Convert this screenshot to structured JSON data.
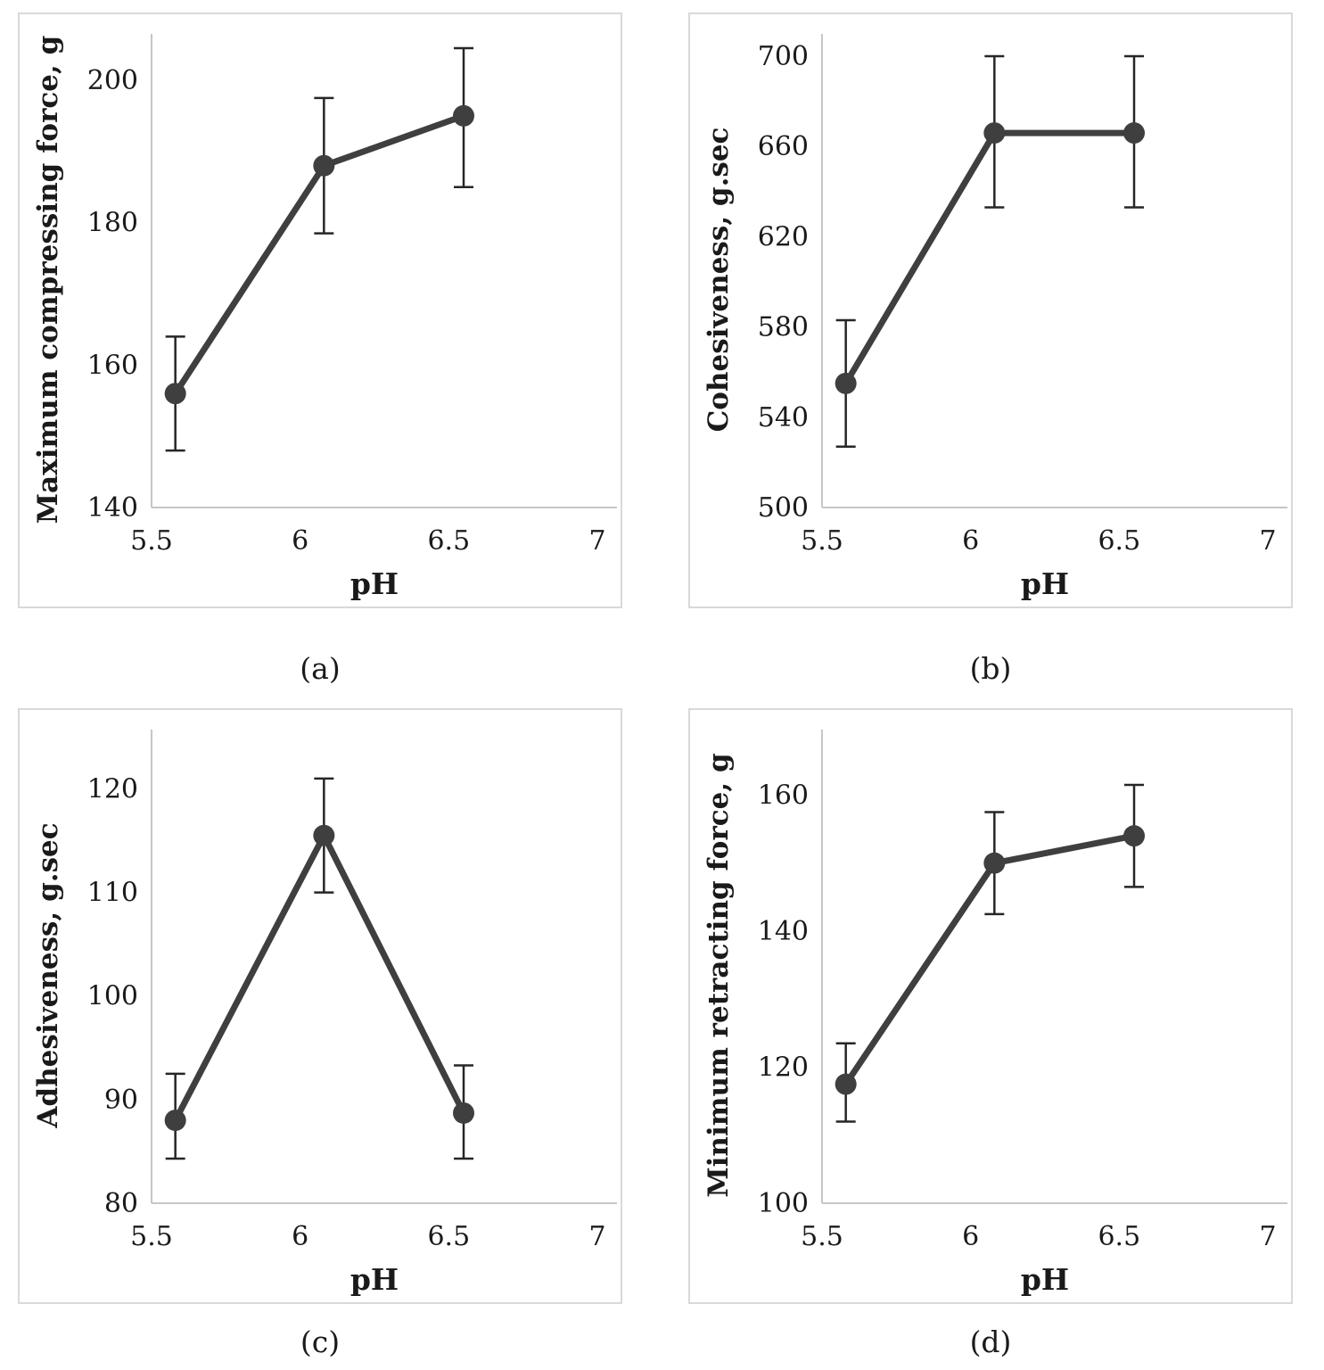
{
  "figure": {
    "background": "#ffffff",
    "panel_border_color": "#d9d9d9",
    "axis_color": "#c6c6c6",
    "text_color": "#1a1a1a",
    "series_color": "#3f3f3f",
    "error_bar_color": "#262626",
    "captions": [
      "(a)",
      "(b)",
      "(c)",
      "(d)"
    ]
  },
  "chart_data": [
    {
      "type": "line",
      "panel": "a",
      "caption": "(a)",
      "title": "",
      "xlabel": "pH",
      "ylabel": "Maximum compressing force, g",
      "x": [
        5.58,
        6.08,
        6.55
      ],
      "y": [
        156,
        188,
        195
      ],
      "y_err_low": [
        148,
        178.5,
        185
      ],
      "y_err_high": [
        164,
        197.5,
        204.5
      ],
      "xlim": [
        5.5,
        7
      ],
      "ylim": [
        140,
        204
      ],
      "x_tick_values": [
        5.5,
        6,
        6.5,
        7
      ],
      "x_tick_labels": [
        "5.5",
        "6",
        "6.5",
        "7"
      ],
      "y_tick_values": [
        140,
        160,
        180,
        200
      ],
      "y_tick_labels": [
        "140",
        "160",
        "180",
        "200"
      ],
      "grid": false,
      "legend": "none"
    },
    {
      "type": "line",
      "panel": "b",
      "caption": "(b)",
      "title": "",
      "xlabel": "pH",
      "ylabel": "Cohesiveness, g.sec",
      "x": [
        5.58,
        6.08,
        6.55
      ],
      "y": [
        555,
        666,
        666
      ],
      "y_err_low": [
        527,
        633,
        633
      ],
      "y_err_high": [
        583,
        700,
        700
      ],
      "xlim": [
        5.5,
        7
      ],
      "ylim": [
        500,
        702
      ],
      "x_tick_values": [
        5.5,
        6,
        6.5,
        7
      ],
      "x_tick_labels": [
        "5.5",
        "6",
        "6.5",
        "7"
      ],
      "y_tick_values": [
        500,
        540,
        580,
        620,
        660,
        700
      ],
      "y_tick_labels": [
        "500",
        "540",
        "580",
        "620",
        "660",
        "700"
      ],
      "grid": false,
      "legend": "none"
    },
    {
      "type": "line",
      "panel": "c",
      "caption": "(c)",
      "title": "",
      "xlabel": "pH",
      "ylabel": "Adhesiveness, g.sec",
      "x": [
        5.58,
        6.08,
        6.55
      ],
      "y": [
        88,
        115.5,
        88.7
      ],
      "y_err_low": [
        84.3,
        110,
        84.3
      ],
      "y_err_high": [
        92.5,
        121,
        93.3
      ],
      "xlim": [
        5.5,
        7
      ],
      "ylim": [
        80,
        124
      ],
      "x_tick_values": [
        5.5,
        6,
        6.5,
        7
      ],
      "x_tick_labels": [
        "5.5",
        "6",
        "6.5",
        "7"
      ],
      "y_tick_values": [
        80,
        90,
        100,
        110,
        120
      ],
      "y_tick_labels": [
        "80",
        "90",
        "100",
        "110",
        "120"
      ],
      "grid": false,
      "legend": "none"
    },
    {
      "type": "line",
      "panel": "d",
      "caption": "(d)",
      "title": "",
      "xlabel": "pH",
      "ylabel": "Minimum retracting force, g",
      "x": [
        5.58,
        6.08,
        6.55
      ],
      "y": [
        117.5,
        150,
        154
      ],
      "y_err_low": [
        112,
        142.5,
        146.5
      ],
      "y_err_high": [
        123.5,
        157.5,
        161.5
      ],
      "xlim": [
        5.5,
        7
      ],
      "ylim": [
        100,
        167
      ],
      "x_tick_values": [
        5.5,
        6,
        6.5,
        7
      ],
      "x_tick_labels": [
        "5.5",
        "6",
        "6.5",
        "7"
      ],
      "y_tick_values": [
        100,
        120,
        140,
        160
      ],
      "y_tick_labels": [
        "100",
        "120",
        "140",
        "160"
      ],
      "grid": false,
      "legend": "none"
    }
  ]
}
